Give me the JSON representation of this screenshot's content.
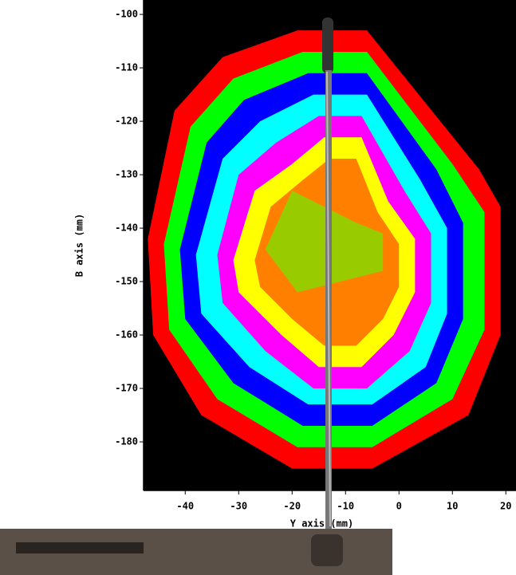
{
  "chart_data": {
    "type": "contour",
    "xlabel": "Y axis (mm)",
    "ylabel": "B axis (mm)",
    "xlim": [
      -47.8,
      21.9
    ],
    "ylim": [
      -189.1,
      -97.3
    ],
    "xticks": [
      -40,
      -30,
      -20,
      -10,
      0,
      10,
      20
    ],
    "yticks": [
      -100,
      -110,
      -120,
      -130,
      -140,
      -150,
      -160,
      -170,
      -180
    ],
    "background": "#000000",
    "series": [
      {
        "color": "#ff0000",
        "x": [
          -19,
          -6,
          15,
          19,
          19,
          13,
          -5,
          -20,
          -37,
          -46,
          -47,
          -42,
          -33
        ],
        "y": [
          -103,
          -103,
          -129,
          -136,
          -160,
          -175,
          -185,
          -185,
          -175,
          -160,
          -142,
          -118,
          -108
        ]
      },
      {
        "color": "#00ff00",
        "x": [
          -18,
          -6,
          10,
          16,
          16,
          10,
          -5,
          -19,
          -34,
          -43,
          -44,
          -39,
          -31
        ],
        "y": [
          -107,
          -107,
          -128,
          -137,
          -159,
          -172,
          -181,
          -181,
          -172,
          -159,
          -143,
          -121,
          -112
        ]
      },
      {
        "color": "#0000ff",
        "x": [
          -17,
          -6,
          7,
          12,
          12,
          7,
          -5,
          -18,
          -31,
          -40,
          -41,
          -36,
          -29
        ],
        "y": [
          -111,
          -111,
          -129,
          -139,
          -157,
          -169,
          -177,
          -177,
          -169,
          -157,
          -144,
          -124,
          -116
        ]
      },
      {
        "color": "#00ffff",
        "x": [
          -16,
          -6,
          4,
          9,
          9,
          5,
          -5,
          -17,
          -28,
          -37,
          -38,
          -33,
          -26
        ],
        "y": [
          -115,
          -115,
          -131,
          -140,
          -156,
          -166,
          -173,
          -173,
          -166,
          -156,
          -145,
          -127,
          -120
        ]
      },
      {
        "color": "#ff00ff",
        "x": [
          -15,
          -7,
          1,
          6,
          6,
          2,
          -6,
          -16,
          -25,
          -33,
          -34,
          -30,
          -23
        ],
        "y": [
          -119,
          -119,
          -133,
          -141,
          -154,
          -163,
          -170,
          -170,
          -163,
          -154,
          -145,
          -130,
          -124
        ]
      },
      {
        "color": "#ffff00",
        "x": [
          -14,
          -7,
          -2,
          3,
          3,
          -1,
          -7,
          -15,
          -22,
          -30,
          -31,
          -27,
          -20
        ],
        "y": [
          -123,
          -123,
          -135,
          -142,
          -152,
          -160,
          -166,
          -166,
          -160,
          -152,
          -146,
          -133,
          -128
        ]
      },
      {
        "color": "#ff8000",
        "x": [
          -13,
          -8,
          -4,
          0,
          0,
          -3,
          -8,
          -14,
          -20,
          -26,
          -27,
          -24,
          -18
        ],
        "y": [
          -127,
          -127,
          -137,
          -143,
          -151,
          -157,
          -162,
          -162,
          -157,
          -151,
          -146,
          -136,
          -131
        ]
      },
      {
        "color": "#99cc00",
        "x": [
          -20,
          -8,
          -3,
          -3,
          -19,
          -25
        ],
        "y": [
          -133,
          -139,
          -141,
          -148,
          -152,
          -144
        ]
      }
    ]
  }
}
